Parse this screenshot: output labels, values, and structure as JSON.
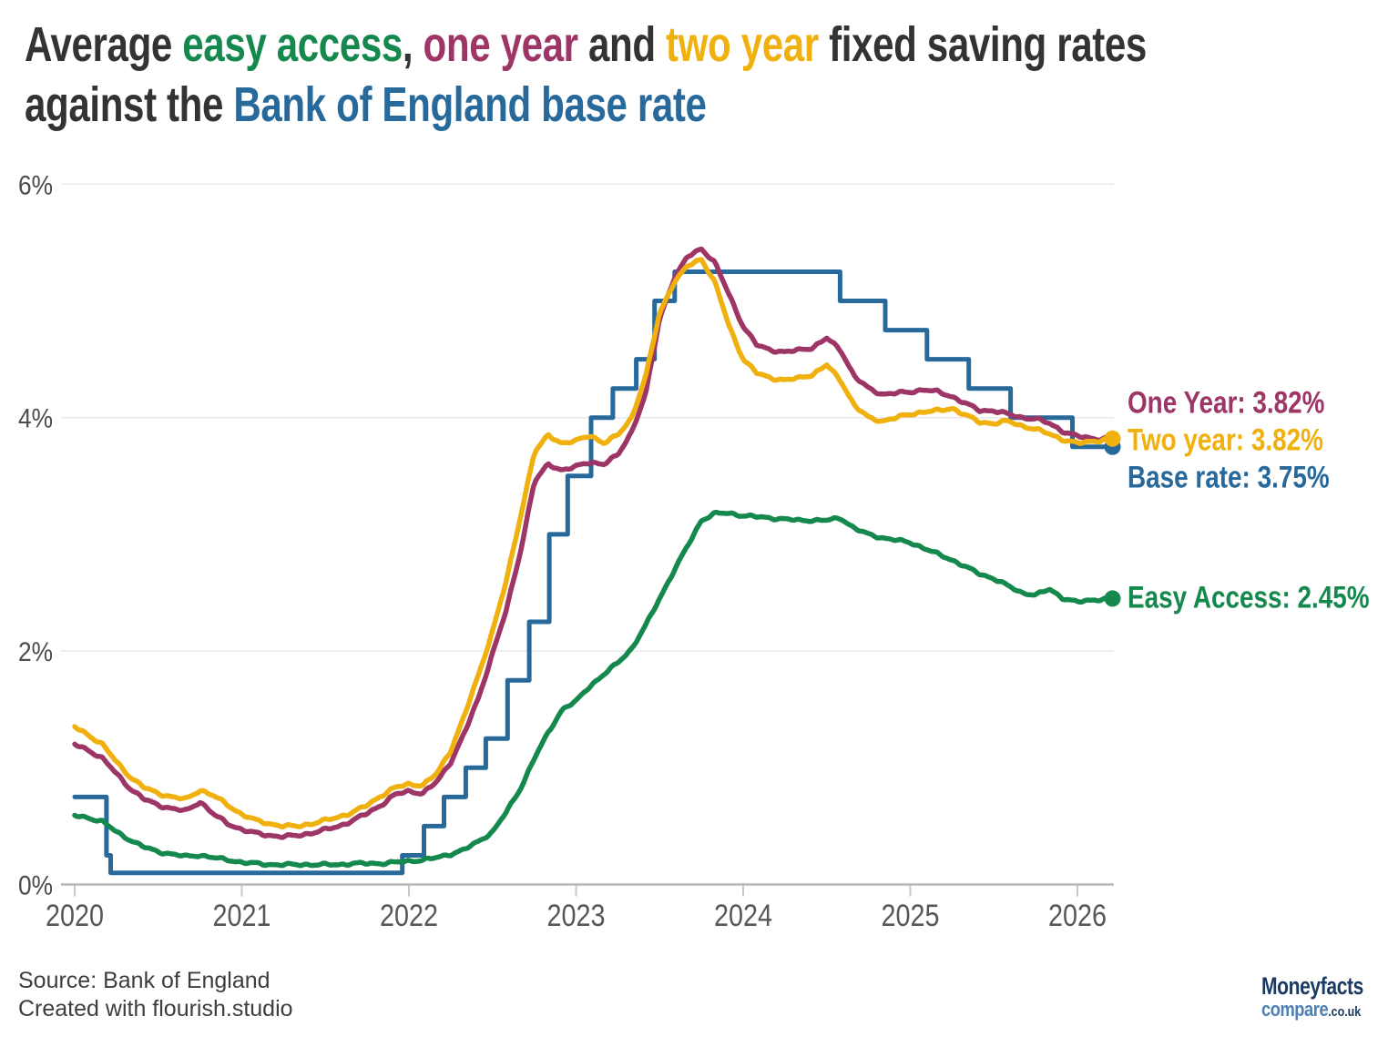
{
  "palette": {
    "ink": "#333333",
    "easy_access": "#15894d",
    "one_year": "#9d3566",
    "two_year": "#f0b00e",
    "base_rate": "#26699a",
    "grid": "#e8e8e8",
    "axis_line": "#b8b8b8",
    "tick_mark": "#c8c8c8",
    "y_label": "#4c4c4c",
    "x_label": "#575757",
    "footer_text": "#3d3d3d",
    "logo_navy": "#1b3a63",
    "logo_blue": "#4d7fb3"
  },
  "title": {
    "lines": [
      {
        "parts": [
          {
            "text": "Average ",
            "color": "ink"
          },
          {
            "text": "easy access",
            "color": "easy_access"
          },
          {
            "text": ", ",
            "color": "ink"
          },
          {
            "text": "one year",
            "color": "one_year"
          },
          {
            "text": " and ",
            "color": "ink"
          },
          {
            "text": "two year",
            "color": "two_year"
          },
          {
            "text": " fixed saving rates",
            "color": "ink"
          }
        ]
      },
      {
        "parts": [
          {
            "text": "against the ",
            "color": "ink"
          },
          {
            "text": "Bank of England base rate",
            "color": "base_rate"
          }
        ]
      }
    ]
  },
  "annotations": {
    "one_year": "One Year: 3.82%",
    "two_year": "Two year: 3.82%",
    "base_rate": "Base rate: 3.75%",
    "easy_access": "Easy Access: 2.45%"
  },
  "footer": {
    "source": "Source: Bank of England",
    "credit": "Created with flourish.studio"
  },
  "logo": {
    "name": "Moneyfacts",
    "compare": "compare",
    "suffix": ".co.uk"
  },
  "chart_data": {
    "type": "line",
    "title": "Average easy access, one year and two year fixed saving rates against the Bank of England base rate",
    "x_axis": {
      "ticks": [
        2020,
        2021,
        2022,
        2023,
        2024,
        2025,
        2026
      ],
      "labels": [
        "2020",
        "2021",
        "2022",
        "2023",
        "2024",
        "2025",
        "2026"
      ],
      "range": [
        2020,
        2026.21
      ]
    },
    "y_axis": {
      "ticks": [
        0,
        2,
        4,
        6
      ],
      "labels": [
        "0%",
        "2%",
        "4%",
        "6%"
      ],
      "range": [
        0,
        6
      ],
      "unit": "%"
    },
    "grid": "horizontal",
    "legend_position": "line-end-labels",
    "series": [
      {
        "name": "Base rate",
        "color_key": "base_rate",
        "style": "step",
        "width": 5,
        "end_value": 3.75,
        "end_label": "Base rate: 3.75%",
        "end_dot": true,
        "noise": 0,
        "points": [
          [
            2020.0,
            0.75
          ],
          [
            2020.19,
            0.25
          ],
          [
            2020.215,
            0.1
          ],
          [
            2021.96,
            0.25
          ],
          [
            2022.09,
            0.5
          ],
          [
            2022.21,
            0.75
          ],
          [
            2022.34,
            1.0
          ],
          [
            2022.46,
            1.25
          ],
          [
            2022.59,
            1.75
          ],
          [
            2022.72,
            2.25
          ],
          [
            2022.84,
            3.0
          ],
          [
            2022.95,
            3.5
          ],
          [
            2023.09,
            4.0
          ],
          [
            2023.22,
            4.25
          ],
          [
            2023.36,
            4.5
          ],
          [
            2023.47,
            5.0
          ],
          [
            2023.59,
            5.25
          ],
          [
            2024.58,
            5.0
          ],
          [
            2024.85,
            4.75
          ],
          [
            2025.1,
            4.5
          ],
          [
            2025.35,
            4.25
          ],
          [
            2025.6,
            4.0
          ],
          [
            2025.97,
            3.75
          ],
          [
            2026.21,
            3.75
          ]
        ]
      },
      {
        "name": "Easy Access",
        "color_key": "easy_access",
        "style": "line",
        "width": 5.5,
        "end_value": 2.45,
        "end_label": "Easy Access: 2.45%",
        "end_dot": true,
        "noise": 1.8,
        "points": [
          [
            2020.0,
            0.59
          ],
          [
            2020.083,
            0.57
          ],
          [
            2020.167,
            0.54
          ],
          [
            2020.25,
            0.45
          ],
          [
            2020.333,
            0.38
          ],
          [
            2020.417,
            0.32
          ],
          [
            2020.5,
            0.28
          ],
          [
            2020.583,
            0.26
          ],
          [
            2020.667,
            0.24
          ],
          [
            2020.75,
            0.25
          ],
          [
            2020.833,
            0.23
          ],
          [
            2020.917,
            0.21
          ],
          [
            2021.0,
            0.19
          ],
          [
            2021.083,
            0.18
          ],
          [
            2021.167,
            0.17
          ],
          [
            2021.25,
            0.17
          ],
          [
            2021.333,
            0.17
          ],
          [
            2021.417,
            0.17
          ],
          [
            2021.5,
            0.17
          ],
          [
            2021.583,
            0.17
          ],
          [
            2021.667,
            0.18
          ],
          [
            2021.75,
            0.18
          ],
          [
            2021.833,
            0.18
          ],
          [
            2021.917,
            0.19
          ],
          [
            2022.0,
            0.2
          ],
          [
            2022.083,
            0.21
          ],
          [
            2022.167,
            0.23
          ],
          [
            2022.25,
            0.26
          ],
          [
            2022.333,
            0.3
          ],
          [
            2022.417,
            0.37
          ],
          [
            2022.5,
            0.45
          ],
          [
            2022.583,
            0.62
          ],
          [
            2022.667,
            0.82
          ],
          [
            2022.75,
            1.08
          ],
          [
            2022.833,
            1.3
          ],
          [
            2022.917,
            1.5
          ],
          [
            2023.0,
            1.57
          ],
          [
            2023.083,
            1.7
          ],
          [
            2023.167,
            1.8
          ],
          [
            2023.25,
            1.9
          ],
          [
            2023.333,
            2.02
          ],
          [
            2023.417,
            2.22
          ],
          [
            2023.5,
            2.45
          ],
          [
            2023.583,
            2.68
          ],
          [
            2023.667,
            2.9
          ],
          [
            2023.75,
            3.12
          ],
          [
            2023.833,
            3.18
          ],
          [
            2023.917,
            3.18
          ],
          [
            2024.0,
            3.16
          ],
          [
            2024.083,
            3.15
          ],
          [
            2024.167,
            3.14
          ],
          [
            2024.25,
            3.13
          ],
          [
            2024.333,
            3.12
          ],
          [
            2024.417,
            3.12
          ],
          [
            2024.5,
            3.12
          ],
          [
            2024.583,
            3.14
          ],
          [
            2024.667,
            3.05
          ],
          [
            2024.75,
            3.0
          ],
          [
            2024.833,
            2.97
          ],
          [
            2024.917,
            2.95
          ],
          [
            2025.0,
            2.93
          ],
          [
            2025.083,
            2.88
          ],
          [
            2025.167,
            2.83
          ],
          [
            2025.25,
            2.78
          ],
          [
            2025.333,
            2.72
          ],
          [
            2025.417,
            2.66
          ],
          [
            2025.5,
            2.62
          ],
          [
            2025.583,
            2.56
          ],
          [
            2025.667,
            2.5
          ],
          [
            2025.75,
            2.48
          ],
          [
            2025.833,
            2.53
          ],
          [
            2025.917,
            2.45
          ],
          [
            2026.0,
            2.42
          ],
          [
            2026.1,
            2.44
          ],
          [
            2026.21,
            2.45
          ]
        ]
      },
      {
        "name": "One Year",
        "color_key": "one_year",
        "style": "line",
        "width": 5.5,
        "end_value": 3.82,
        "end_label": "One Year: 3.82%",
        "end_dot": false,
        "noise": 2.0,
        "points": [
          [
            2020.0,
            1.2
          ],
          [
            2020.083,
            1.15
          ],
          [
            2020.167,
            1.08
          ],
          [
            2020.25,
            0.95
          ],
          [
            2020.333,
            0.82
          ],
          [
            2020.417,
            0.73
          ],
          [
            2020.5,
            0.68
          ],
          [
            2020.583,
            0.65
          ],
          [
            2020.667,
            0.63
          ],
          [
            2020.75,
            0.71
          ],
          [
            2020.833,
            0.6
          ],
          [
            2020.917,
            0.52
          ],
          [
            2021.0,
            0.47
          ],
          [
            2021.083,
            0.44
          ],
          [
            2021.167,
            0.42
          ],
          [
            2021.25,
            0.41
          ],
          [
            2021.333,
            0.42
          ],
          [
            2021.417,
            0.44
          ],
          [
            2021.5,
            0.47
          ],
          [
            2021.583,
            0.5
          ],
          [
            2021.667,
            0.55
          ],
          [
            2021.75,
            0.61
          ],
          [
            2021.833,
            0.68
          ],
          [
            2021.917,
            0.77
          ],
          [
            2022.0,
            0.8
          ],
          [
            2022.083,
            0.78
          ],
          [
            2022.167,
            0.88
          ],
          [
            2022.25,
            1.05
          ],
          [
            2022.333,
            1.3
          ],
          [
            2022.417,
            1.6
          ],
          [
            2022.5,
            1.98
          ],
          [
            2022.583,
            2.35
          ],
          [
            2022.667,
            2.85
          ],
          [
            2022.75,
            3.45
          ],
          [
            2022.833,
            3.6
          ],
          [
            2022.917,
            3.55
          ],
          [
            2023.0,
            3.58
          ],
          [
            2023.083,
            3.62
          ],
          [
            2023.167,
            3.6
          ],
          [
            2023.25,
            3.68
          ],
          [
            2023.333,
            3.88
          ],
          [
            2023.417,
            4.2
          ],
          [
            2023.5,
            4.85
          ],
          [
            2023.583,
            5.18
          ],
          [
            2023.667,
            5.38
          ],
          [
            2023.75,
            5.45
          ],
          [
            2023.833,
            5.32
          ],
          [
            2023.917,
            5.05
          ],
          [
            2024.0,
            4.78
          ],
          [
            2024.083,
            4.62
          ],
          [
            2024.167,
            4.58
          ],
          [
            2024.25,
            4.56
          ],
          [
            2024.333,
            4.58
          ],
          [
            2024.417,
            4.6
          ],
          [
            2024.5,
            4.68
          ],
          [
            2024.583,
            4.58
          ],
          [
            2024.667,
            4.35
          ],
          [
            2024.75,
            4.25
          ],
          [
            2024.833,
            4.2
          ],
          [
            2024.917,
            4.21
          ],
          [
            2025.0,
            4.22
          ],
          [
            2025.083,
            4.24
          ],
          [
            2025.167,
            4.22
          ],
          [
            2025.25,
            4.18
          ],
          [
            2025.333,
            4.12
          ],
          [
            2025.417,
            4.06
          ],
          [
            2025.5,
            4.06
          ],
          [
            2025.583,
            4.03
          ],
          [
            2025.667,
            4.0
          ],
          [
            2025.75,
            3.99
          ],
          [
            2025.833,
            3.95
          ],
          [
            2025.917,
            3.88
          ],
          [
            2026.0,
            3.84
          ],
          [
            2026.1,
            3.82
          ],
          [
            2026.21,
            3.82
          ]
        ]
      },
      {
        "name": "Two year",
        "color_key": "two_year",
        "style": "line",
        "width": 5.5,
        "end_value": 3.82,
        "end_label": "Two year: 3.82%",
        "end_dot": true,
        "noise": 2.0,
        "points": [
          [
            2020.0,
            1.35
          ],
          [
            2020.083,
            1.28
          ],
          [
            2020.167,
            1.2
          ],
          [
            2020.25,
            1.05
          ],
          [
            2020.333,
            0.92
          ],
          [
            2020.417,
            0.83
          ],
          [
            2020.5,
            0.78
          ],
          [
            2020.583,
            0.75
          ],
          [
            2020.667,
            0.73
          ],
          [
            2020.75,
            0.81
          ],
          [
            2020.833,
            0.76
          ],
          [
            2020.917,
            0.68
          ],
          [
            2021.0,
            0.6
          ],
          [
            2021.083,
            0.55
          ],
          [
            2021.167,
            0.52
          ],
          [
            2021.25,
            0.5
          ],
          [
            2021.333,
            0.5
          ],
          [
            2021.417,
            0.52
          ],
          [
            2021.5,
            0.55
          ],
          [
            2021.583,
            0.58
          ],
          [
            2021.667,
            0.62
          ],
          [
            2021.75,
            0.68
          ],
          [
            2021.833,
            0.76
          ],
          [
            2021.917,
            0.83
          ],
          [
            2022.0,
            0.86
          ],
          [
            2022.083,
            0.85
          ],
          [
            2022.167,
            0.95
          ],
          [
            2022.25,
            1.15
          ],
          [
            2022.333,
            1.45
          ],
          [
            2022.417,
            1.8
          ],
          [
            2022.5,
            2.17
          ],
          [
            2022.583,
            2.6
          ],
          [
            2022.667,
            3.15
          ],
          [
            2022.75,
            3.7
          ],
          [
            2022.833,
            3.85
          ],
          [
            2022.917,
            3.78
          ],
          [
            2023.0,
            3.8
          ],
          [
            2023.083,
            3.85
          ],
          [
            2023.167,
            3.78
          ],
          [
            2023.25,
            3.85
          ],
          [
            2023.333,
            4.0
          ],
          [
            2023.417,
            4.35
          ],
          [
            2023.5,
            4.9
          ],
          [
            2023.583,
            5.15
          ],
          [
            2023.667,
            5.3
          ],
          [
            2023.75,
            5.36
          ],
          [
            2023.833,
            5.15
          ],
          [
            2023.917,
            4.78
          ],
          [
            2024.0,
            4.5
          ],
          [
            2024.083,
            4.38
          ],
          [
            2024.167,
            4.34
          ],
          [
            2024.25,
            4.32
          ],
          [
            2024.333,
            4.34
          ],
          [
            2024.417,
            4.37
          ],
          [
            2024.5,
            4.45
          ],
          [
            2024.583,
            4.32
          ],
          [
            2024.667,
            4.1
          ],
          [
            2024.75,
            4.0
          ],
          [
            2024.833,
            3.97
          ],
          [
            2024.917,
            4.0
          ],
          [
            2025.0,
            4.03
          ],
          [
            2025.083,
            4.05
          ],
          [
            2025.167,
            4.06
          ],
          [
            2025.25,
            4.08
          ],
          [
            2025.333,
            4.02
          ],
          [
            2025.417,
            3.96
          ],
          [
            2025.5,
            3.95
          ],
          [
            2025.583,
            3.97
          ],
          [
            2025.667,
            3.93
          ],
          [
            2025.75,
            3.9
          ],
          [
            2025.833,
            3.86
          ],
          [
            2025.917,
            3.81
          ],
          [
            2026.0,
            3.78
          ],
          [
            2026.1,
            3.8
          ],
          [
            2026.21,
            3.82
          ]
        ]
      }
    ]
  }
}
